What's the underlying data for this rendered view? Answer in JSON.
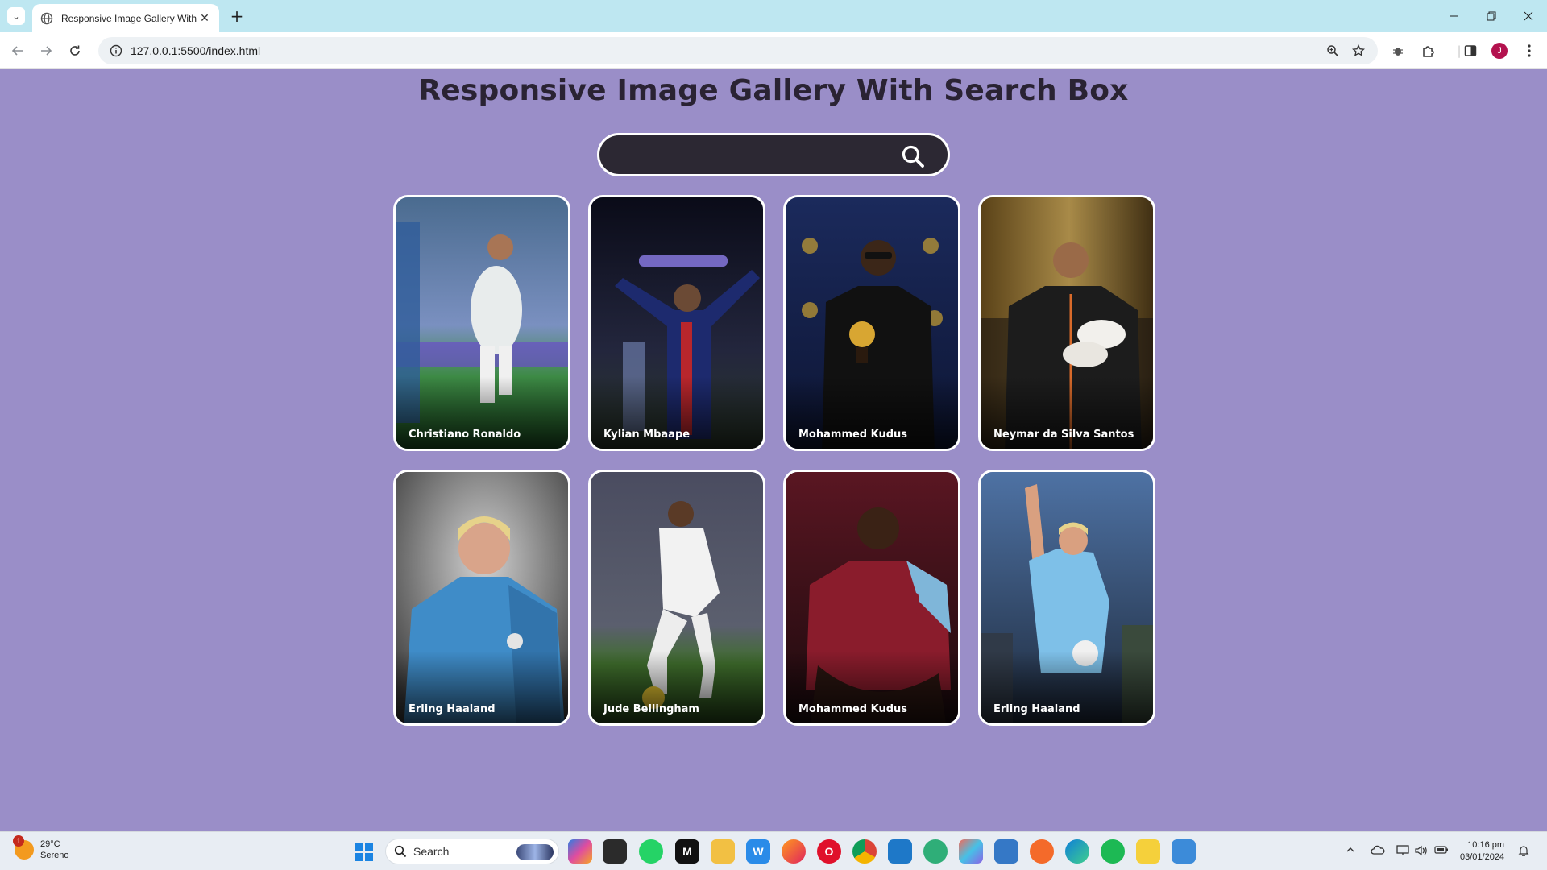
{
  "browser": {
    "tab_title": "Responsive Image Gallery With",
    "tab_close": "✕",
    "new_tab": "+",
    "url": "127.0.0.1:5500/index.html",
    "profile_initial": "J"
  },
  "page": {
    "title": "Responsive Image Gallery With Search Box",
    "search_placeholder": "",
    "background_color": "#9A8EC8"
  },
  "gallery": [
    {
      "name": "Christiano Ronaldo"
    },
    {
      "name": "Kylian Mbaape"
    },
    {
      "name": "Mohammed Kudus"
    },
    {
      "name": "Neymar da Silva Santos"
    },
    {
      "name": "Erling Haaland"
    },
    {
      "name": "Jude Bellingham"
    },
    {
      "name": "Mohammed Kudus"
    },
    {
      "name": "Erling Haaland"
    }
  ],
  "taskbar": {
    "weather_temp": "29°C",
    "weather_desc": "Sereno",
    "weather_badge": "1",
    "search_label": "Search",
    "time": "10:16 pm",
    "date": "03/01/2024"
  }
}
